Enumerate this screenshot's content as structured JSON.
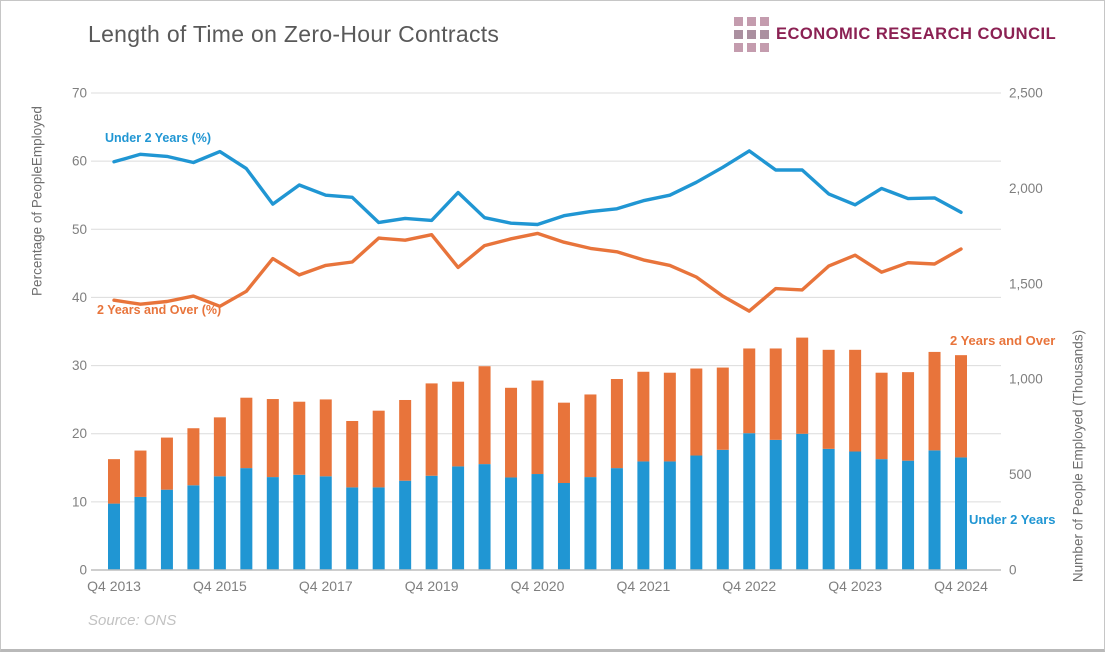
{
  "title": "Length of Time on Zero-Hour Contracts",
  "logo": {
    "text": "ECONOMIC RESEARCH COUNCIL"
  },
  "source": "Source: ONS",
  "chart_data": {
    "type": "combo",
    "subtype": "lines-over-stacked-bars",
    "periods": [
      "Q4 2013",
      "Q2 2014",
      "Q4 2014",
      "Q2 2015",
      "Q4 2015",
      "Q2 2016",
      "Q4 2016",
      "Q2 2017",
      "Q4 2017",
      "Q2 2018",
      "Q4 2018",
      "Q2 2019",
      "Q4 2019",
      "Q1 2020",
      "Q2 2020",
      "Q3 2020",
      "Q4 2020",
      "Q1 2021",
      "Q2 2021",
      "Q3 2021",
      "Q4 2021",
      "Q1 2022",
      "Q2 2022",
      "Q3 2022",
      "Q4 2022",
      "Q1 2023",
      "Q2 2023",
      "Q3 2023",
      "Q4 2023",
      "Q1 2024",
      "Q2 2024",
      "Q3 2024",
      "Q4 2024"
    ],
    "x_ticks": [
      {
        "index": 0,
        "label": "Q4 2013"
      },
      {
        "index": 4,
        "label": "Q4 2015"
      },
      {
        "index": 8,
        "label": "Q4 2017"
      },
      {
        "index": 12,
        "label": "Q4 2019"
      },
      {
        "index": 16,
        "label": "Q4 2020"
      },
      {
        "index": 20,
        "label": "Q4 2021"
      },
      {
        "index": 24,
        "label": "Q4 2022"
      },
      {
        "index": 28,
        "label": "Q4 2023"
      },
      {
        "index": 32,
        "label": "Q4 2024"
      }
    ],
    "left_axis": {
      "title": "Percentage of PeopleEmployed",
      "range": [
        0,
        70
      ],
      "ticks": [
        0,
        10,
        20,
        30,
        40,
        50,
        60,
        70
      ],
      "gridlines": true
    },
    "right_axis": {
      "title": "Number of People Employed (Thousands)",
      "range": [
        0,
        2500
      ],
      "ticks": [
        {
          "value": 0,
          "label": "0"
        },
        {
          "value": 500,
          "label": "500"
        },
        {
          "value": 1000,
          "label": "1,000"
        },
        {
          "value": 1500,
          "label": "1,500"
        },
        {
          "value": 2000,
          "label": "2,000"
        },
        {
          "value": 2500,
          "label": "2,500"
        }
      ]
    },
    "line_series": [
      {
        "name": "Under 2 Years (%)",
        "axis": "left",
        "color": "#2096d3",
        "values": [
          59.9,
          61.0,
          60.7,
          59.8,
          61.4,
          58.9,
          53.7,
          56.5,
          55.0,
          54.7,
          51.0,
          51.6,
          51.3,
          55.4,
          51.7,
          50.9,
          50.7,
          52.0,
          52.6,
          53.0,
          54.2,
          55.0,
          56.9,
          59.1,
          61.5,
          58.7,
          58.7,
          55.2,
          53.6,
          56.0,
          54.5,
          54.6,
          52.5
        ]
      },
      {
        "name": "2 Years and Over (%)",
        "axis": "left",
        "color": "#e8743b",
        "values": [
          39.6,
          39.0,
          39.4,
          40.2,
          38.7,
          40.9,
          45.7,
          43.3,
          44.7,
          45.2,
          48.7,
          48.4,
          49.2,
          44.4,
          47.6,
          48.6,
          49.4,
          48.1,
          47.2,
          46.7,
          45.5,
          44.7,
          43.0,
          40.2,
          38.0,
          41.3,
          41.1,
          44.6,
          46.2,
          43.7,
          45.1,
          44.9,
          47.1
        ]
      }
    ],
    "bar_series": [
      {
        "name": "Under 2 Years",
        "axis": "right",
        "color": "#2096d3",
        "values": [
          348,
          383,
          421,
          444,
          491,
          534,
          487,
          499,
          491,
          433,
          433,
          468,
          494,
          543,
          555,
          485,
          503,
          456,
          487,
          534,
          569,
          569,
          600,
          630,
          717,
          682,
          714,
          635,
          621,
          581,
          573,
          627,
          590
        ]
      },
      {
        "name": "2 Years and Over",
        "axis": "right",
        "color": "#e8743b",
        "values": [
          233,
          243,
          273,
          299,
          309,
          369,
          409,
          383,
          403,
          348,
          402,
          423,
          484,
          444,
          513,
          470,
          490,
          421,
          433,
          467,
          470,
          465,
          456,
          431,
          444,
          479,
          504,
          519,
          533,
          453,
          464,
          516,
          536
        ]
      }
    ],
    "legend_position": "inline-labels",
    "colors": {
      "under_2_years": "#2096d3",
      "two_years_and_over": "#e8743b",
      "gridline": "#dcdcdc",
      "baseline": "#bdbdbd",
      "title_text": "#595959",
      "tick_text": "#7f7f7f",
      "logo_maroon": "#8b2153",
      "logo_square": "#c49cae"
    }
  }
}
